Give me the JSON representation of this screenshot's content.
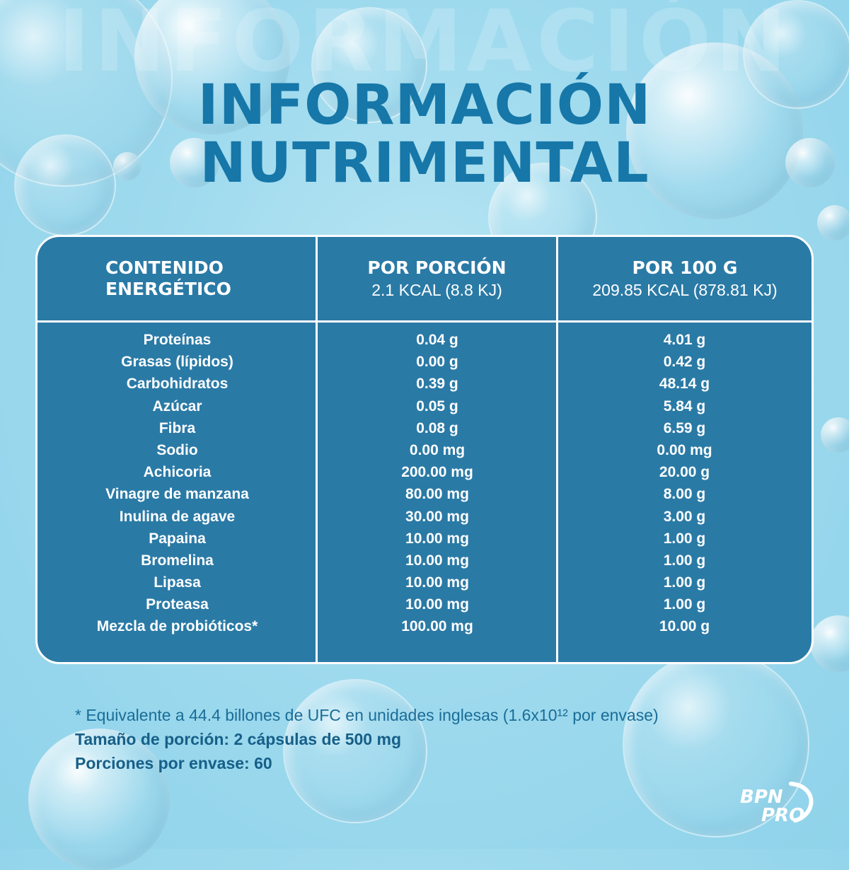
{
  "title": {
    "line1": "INFORMACIÓN",
    "line2": "NUTRIMENTAL"
  },
  "table": {
    "headers": [
      {
        "title": "CONTENIDO\nENERGÉTICO",
        "sub": ""
      },
      {
        "title": "POR PORCIÓN",
        "sub": "2.1 KCAL (8.8 KJ)"
      },
      {
        "title": "POR 100 G",
        "sub": "209.85 KCAL (878.81 KJ)"
      }
    ],
    "rows": [
      [
        "Proteínas",
        "0.04 g",
        "4.01 g"
      ],
      [
        "Grasas (lípidos)",
        "0.00 g",
        "0.42 g"
      ],
      [
        "Carbohidratos",
        "0.39 g",
        "48.14 g"
      ],
      [
        "Azúcar",
        "0.05 g",
        "5.84 g"
      ],
      [
        "Fibra",
        "0.08 g",
        "6.59 g"
      ],
      [
        "Sodio",
        "0.00 mg",
        "0.00 mg"
      ],
      [
        "Achicoria",
        "200.00 mg",
        "20.00 g"
      ],
      [
        "Vinagre de manzana",
        "80.00 mg",
        "8.00 g"
      ],
      [
        "Inulina de agave",
        "30.00 mg",
        "3.00 g"
      ],
      [
        "Papaina",
        "10.00 mg",
        "1.00 g"
      ],
      [
        "Bromelina",
        "10.00 mg",
        "1.00 g"
      ],
      [
        "Lipasa",
        "10.00 mg",
        "1.00 g"
      ],
      [
        "Proteasa",
        "10.00 mg",
        "1.00 g"
      ],
      [
        "Mezcla de probióticos*",
        "100.00 mg",
        "10.00 g"
      ]
    ]
  },
  "notes": {
    "footnote": "* Equivalente a 44.4 billones de UFC en unidades inglesas (1.6x10¹² por envase)",
    "serving_size": "Tamaño de porción: 2 cápsulas de 500 mg",
    "servings_per_container": "Porciones por envase: 60"
  },
  "logo": {
    "line1": "BPN",
    "line2": "PRO"
  },
  "colors": {
    "table_bg": "#2a7aa6",
    "title": "#1677a8",
    "background": "#9fdaee"
  }
}
